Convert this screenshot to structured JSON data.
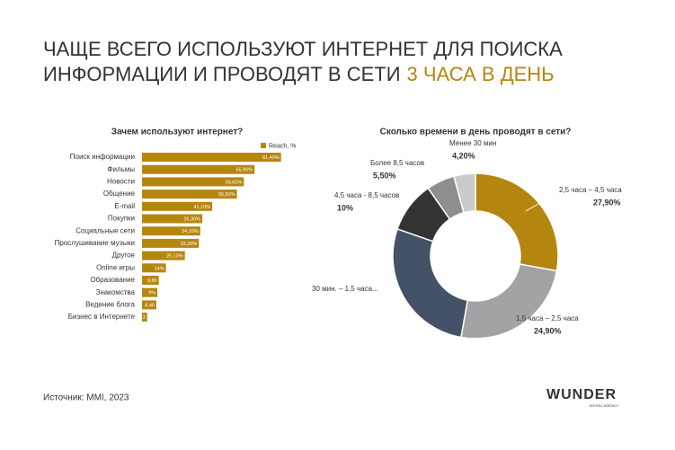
{
  "title": [
    "ЧАЩЕ ВСЕГО ИСПОЛЬЗУЮТ ИНТЕРНЕТ ДЛЯ ПОИСКА",
    "ИНФОРМАЦИИ И ПРОВОДЯТ В СЕТИ"
  ],
  "title_highlight": "3 ЧАСА В ДЕНЬ",
  "source": "Источник: MMI, 2023",
  "logo": "WUNDER",
  "logo_sub": "DIGITAL AGENCY",
  "chart_data": [
    {
      "type": "hbar",
      "title": "Зачем используют интернет?",
      "categories": [
        "Поиск информации",
        "Фильмы",
        "Новости",
        "Общение",
        "E-mail",
        "Покупки",
        "Социальные сети",
        "Прослушивание музыки",
        "Другое",
        "Online игры",
        "Образование",
        "Знакомства",
        "Ведение блога",
        "Бизнес в Интернете"
      ],
      "series": [
        {
          "name": "Reach, %",
          "color": "#b5860f",
          "values": [
            81.4,
            65.9,
            59.6,
            55.6,
            41.1,
            35.3,
            34.1,
            33.3,
            25.1,
            14,
            9.8,
            9,
            8.4,
            3
          ],
          "value_labels": [
            "81,40%",
            "65,90%",
            "59,60%",
            "55,60%",
            "41,10%",
            "35,30%",
            "34,10%",
            "33,30%",
            "25,10%",
            "14%",
            "9,80",
            "9%",
            "8,40",
            "3"
          ]
        }
      ],
      "legend": "top-right"
    },
    {
      "type": "donut",
      "title": "Сколько времени в день проводят в сети?",
      "categories": [
        "2,5 часа – 4,5 часа",
        "1,5 часа – 2,5 часа",
        "30 мин. – 1,5 часа...",
        "4,5 часа - 8,5 часов",
        "Более 8,5 часов",
        "Менее 30 мин"
      ],
      "values": [
        27.9,
        24.9,
        27.5,
        10,
        5.5,
        4.2
      ],
      "value_labels": [
        "27,90%",
        "24,90%",
        null,
        "10%",
        "5,50%",
        "4,20%"
      ],
      "colors": [
        "#b5860f",
        "#a3a3a3",
        "#435266",
        "#333333",
        "#8e8e8e",
        "#cacaca"
      ]
    }
  ]
}
